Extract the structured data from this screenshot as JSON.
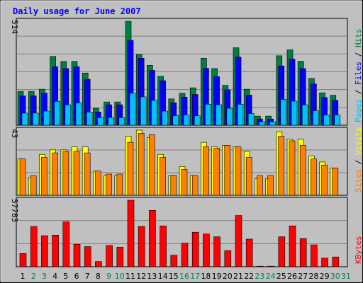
{
  "title": "Daily usage for June 2007",
  "colors": {
    "hits": "#008040",
    "files": "#0000FF",
    "pages": "#00C0FF",
    "visits": "#FFFF00",
    "sites": "#FF8000",
    "kbytes": "#FF0000",
    "title": "#0000FF",
    "day_weekday": "#000000",
    "day_weekend": "#00805C"
  },
  "chart_data": [
    {
      "type": "bar",
      "panel": "top",
      "ymax_label": "514",
      "ylim": [
        0,
        514
      ],
      "grid": true,
      "ylabel_parts": [
        {
          "text": "Pages",
          "color": "#00C0FF"
        },
        {
          "text": " / ",
          "color": "#000000"
        },
        {
          "text": "Files",
          "color": "#0000FF"
        },
        {
          "text": " / ",
          "color": "#000000"
        },
        {
          "text": "Hits",
          "color": "#008040"
        }
      ],
      "series": [
        {
          "name": "Hits",
          "values": [
            167,
            167,
            178,
            340,
            315,
            315,
            258,
            83,
            115,
            115,
            514,
            350,
            296,
            242,
            130,
            158,
            185,
            331,
            280,
            197,
            383,
            178,
            45,
            45,
            343,
            373,
            316,
            231,
            160,
            148,
            0
          ]
        },
        {
          "name": "Files",
          "values": [
            145,
            145,
            159,
            289,
            280,
            289,
            227,
            65,
            101,
            101,
            419,
            331,
            271,
            220,
            111,
            139,
            152,
            281,
            240,
            175,
            337,
            149,
            31,
            31,
            293,
            327,
            280,
            204,
            137,
            123,
            0
          ]
        },
        {
          "name": "Pages",
          "values": [
            60,
            60,
            70,
            118,
            101,
            110,
            65,
            38,
            38,
            38,
            159,
            140,
            123,
            70,
            47,
            51,
            47,
            104,
            101,
            84,
            104,
            58,
            17,
            17,
            128,
            119,
            101,
            72,
            51,
            51,
            0
          ]
        }
      ]
    },
    {
      "type": "bar",
      "panel": "middle",
      "ymax_label": "43",
      "ylim": [
        0,
        43
      ],
      "grid": true,
      "ylabel_parts": [
        {
          "text": "Sites",
          "color": "#FF8000"
        },
        {
          "text": " / ",
          "color": "#000000"
        },
        {
          "text": "Visits",
          "color": "#FFFF00"
        }
      ],
      "series": [
        {
          "name": "Visits",
          "values": [
            24,
            12,
            27,
            30,
            30,
            32,
            32,
            16,
            13,
            13,
            39,
            43,
            38,
            27,
            13,
            19,
            13,
            35,
            32,
            33,
            32,
            29,
            11,
            11,
            42,
            37,
            37,
            26,
            22,
            18,
            0
          ]
        },
        {
          "name": "Sites",
          "values": [
            24,
            13,
            25,
            28,
            29,
            29,
            28,
            16,
            14,
            14,
            35,
            41,
            40,
            25,
            13,
            17,
            13,
            32,
            31,
            33,
            32,
            25,
            13,
            13,
            39,
            36,
            33,
            24,
            20,
            18,
            0
          ]
        }
      ]
    },
    {
      "type": "bar",
      "panel": "bottom",
      "ymax_label": "57783",
      "ylim": [
        0,
        57783
      ],
      "grid": true,
      "ylabel_parts": [
        {
          "text": "KBytes",
          "color": "#FF0000"
        }
      ],
      "series": [
        {
          "name": "KBytes",
          "values": [
            11500,
            35000,
            27000,
            27500,
            39000,
            19500,
            17500,
            4500,
            18500,
            17000,
            57783,
            35000,
            49000,
            35500,
            10000,
            20500,
            30000,
            28500,
            26000,
            14000,
            44500,
            24000,
            500,
            500,
            26000,
            35500,
            24500,
            19000,
            7500,
            8500,
            0
          ]
        }
      ]
    }
  ],
  "days": [
    {
      "label": "1",
      "weekend": false
    },
    {
      "label": "2",
      "weekend": true
    },
    {
      "label": "3",
      "weekend": true
    },
    {
      "label": "4",
      "weekend": false
    },
    {
      "label": "5",
      "weekend": false
    },
    {
      "label": "6",
      "weekend": false
    },
    {
      "label": "7",
      "weekend": false
    },
    {
      "label": "8",
      "weekend": false
    },
    {
      "label": "9",
      "weekend": true
    },
    {
      "label": "10",
      "weekend": true
    },
    {
      "label": "11",
      "weekend": false
    },
    {
      "label": "12",
      "weekend": false
    },
    {
      "label": "13",
      "weekend": false
    },
    {
      "label": "14",
      "weekend": false
    },
    {
      "label": "15",
      "weekend": false
    },
    {
      "label": "16",
      "weekend": true
    },
    {
      "label": "17",
      "weekend": true
    },
    {
      "label": "18",
      "weekend": false
    },
    {
      "label": "19",
      "weekend": false
    },
    {
      "label": "20",
      "weekend": false
    },
    {
      "label": "21",
      "weekend": false
    },
    {
      "label": "22",
      "weekend": false
    },
    {
      "label": "23",
      "weekend": true
    },
    {
      "label": "24",
      "weekend": true
    },
    {
      "label": "25",
      "weekend": false
    },
    {
      "label": "26",
      "weekend": false
    },
    {
      "label": "27",
      "weekend": false
    },
    {
      "label": "28",
      "weekend": false
    },
    {
      "label": "29",
      "weekend": false
    },
    {
      "label": "30",
      "weekend": true
    },
    {
      "label": "31",
      "weekend": true
    }
  ]
}
